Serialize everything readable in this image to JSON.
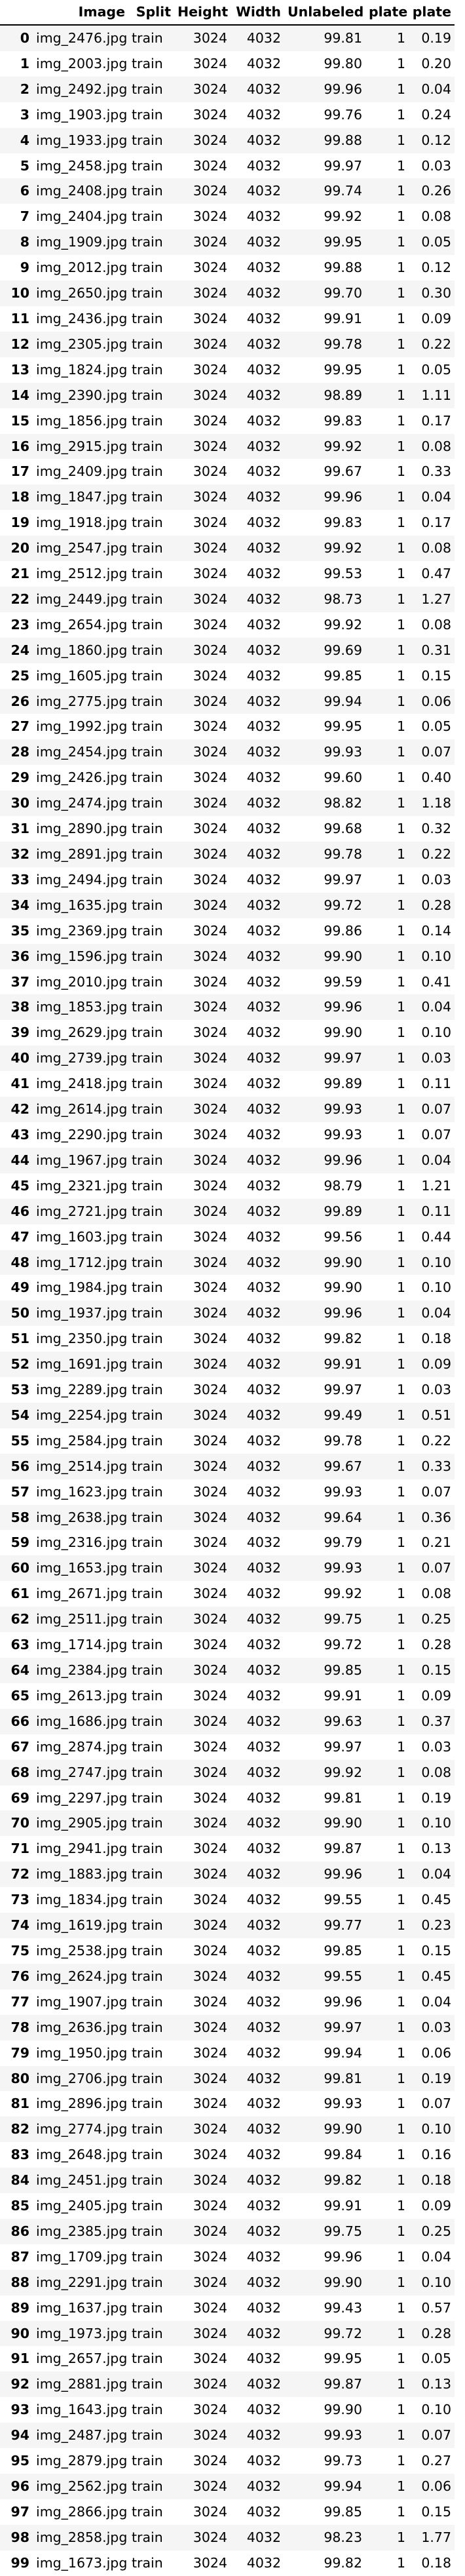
{
  "columns": [
    "",
    "Image",
    "Split",
    "Height",
    "Width",
    "Unlabeled",
    "plate",
    "plate"
  ],
  "rows": [
    [
      "0",
      "img_2476.jpg",
      "train",
      "3024",
      "4032",
      "99.81",
      "1",
      "0.19"
    ],
    [
      "1",
      "img_2003.jpg",
      "train",
      "3024",
      "4032",
      "99.80",
      "1",
      "0.20"
    ],
    [
      "2",
      "img_2492.jpg",
      "train",
      "3024",
      "4032",
      "99.96",
      "1",
      "0.04"
    ],
    [
      "3",
      "img_1903.jpg",
      "train",
      "3024",
      "4032",
      "99.76",
      "1",
      "0.24"
    ],
    [
      "4",
      "img_1933.jpg",
      "train",
      "3024",
      "4032",
      "99.88",
      "1",
      "0.12"
    ],
    [
      "5",
      "img_2458.jpg",
      "train",
      "3024",
      "4032",
      "99.97",
      "1",
      "0.03"
    ],
    [
      "6",
      "img_2408.jpg",
      "train",
      "3024",
      "4032",
      "99.74",
      "1",
      "0.26"
    ],
    [
      "7",
      "img_2404.jpg",
      "train",
      "3024",
      "4032",
      "99.92",
      "1",
      "0.08"
    ],
    [
      "8",
      "img_1909.jpg",
      "train",
      "3024",
      "4032",
      "99.95",
      "1",
      "0.05"
    ],
    [
      "9",
      "img_2012.jpg",
      "train",
      "3024",
      "4032",
      "99.88",
      "1",
      "0.12"
    ],
    [
      "10",
      "img_2650.jpg",
      "train",
      "3024",
      "4032",
      "99.70",
      "1",
      "0.30"
    ],
    [
      "11",
      "img_2436.jpg",
      "train",
      "3024",
      "4032",
      "99.91",
      "1",
      "0.09"
    ],
    [
      "12",
      "img_2305.jpg",
      "train",
      "3024",
      "4032",
      "99.78",
      "1",
      "0.22"
    ],
    [
      "13",
      "img_1824.jpg",
      "train",
      "3024",
      "4032",
      "99.95",
      "1",
      "0.05"
    ],
    [
      "14",
      "img_2390.jpg",
      "train",
      "3024",
      "4032",
      "98.89",
      "1",
      "1.11"
    ],
    [
      "15",
      "img_1856.jpg",
      "train",
      "3024",
      "4032",
      "99.83",
      "1",
      "0.17"
    ],
    [
      "16",
      "img_2915.jpg",
      "train",
      "3024",
      "4032",
      "99.92",
      "1",
      "0.08"
    ],
    [
      "17",
      "img_2409.jpg",
      "train",
      "3024",
      "4032",
      "99.67",
      "1",
      "0.33"
    ],
    [
      "18",
      "img_1847.jpg",
      "train",
      "3024",
      "4032",
      "99.96",
      "1",
      "0.04"
    ],
    [
      "19",
      "img_1918.jpg",
      "train",
      "3024",
      "4032",
      "99.83",
      "1",
      "0.17"
    ],
    [
      "20",
      "img_2547.jpg",
      "train",
      "3024",
      "4032",
      "99.92",
      "1",
      "0.08"
    ],
    [
      "21",
      "img_2512.jpg",
      "train",
      "3024",
      "4032",
      "99.53",
      "1",
      "0.47"
    ],
    [
      "22",
      "img_2449.jpg",
      "train",
      "3024",
      "4032",
      "98.73",
      "1",
      "1.27"
    ],
    [
      "23",
      "img_2654.jpg",
      "train",
      "3024",
      "4032",
      "99.92",
      "1",
      "0.08"
    ],
    [
      "24",
      "img_1860.jpg",
      "train",
      "3024",
      "4032",
      "99.69",
      "1",
      "0.31"
    ],
    [
      "25",
      "img_1605.jpg",
      "train",
      "3024",
      "4032",
      "99.85",
      "1",
      "0.15"
    ],
    [
      "26",
      "img_2775.jpg",
      "train",
      "3024",
      "4032",
      "99.94",
      "1",
      "0.06"
    ],
    [
      "27",
      "img_1992.jpg",
      "train",
      "3024",
      "4032",
      "99.95",
      "1",
      "0.05"
    ],
    [
      "28",
      "img_2454.jpg",
      "train",
      "3024",
      "4032",
      "99.93",
      "1",
      "0.07"
    ],
    [
      "29",
      "img_2426.jpg",
      "train",
      "3024",
      "4032",
      "99.60",
      "1",
      "0.40"
    ],
    [
      "30",
      "img_2474.jpg",
      "train",
      "3024",
      "4032",
      "98.82",
      "1",
      "1.18"
    ],
    [
      "31",
      "img_2890.jpg",
      "train",
      "3024",
      "4032",
      "99.68",
      "1",
      "0.32"
    ],
    [
      "32",
      "img_2891.jpg",
      "train",
      "3024",
      "4032",
      "99.78",
      "1",
      "0.22"
    ],
    [
      "33",
      "img_2494.jpg",
      "train",
      "3024",
      "4032",
      "99.97",
      "1",
      "0.03"
    ],
    [
      "34",
      "img_1635.jpg",
      "train",
      "3024",
      "4032",
      "99.72",
      "1",
      "0.28"
    ],
    [
      "35",
      "img_2369.jpg",
      "train",
      "3024",
      "4032",
      "99.86",
      "1",
      "0.14"
    ],
    [
      "36",
      "img_1596.jpg",
      "train",
      "3024",
      "4032",
      "99.90",
      "1",
      "0.10"
    ],
    [
      "37",
      "img_2010.jpg",
      "train",
      "3024",
      "4032",
      "99.59",
      "1",
      "0.41"
    ],
    [
      "38",
      "img_1853.jpg",
      "train",
      "3024",
      "4032",
      "99.96",
      "1",
      "0.04"
    ],
    [
      "39",
      "img_2629.jpg",
      "train",
      "3024",
      "4032",
      "99.90",
      "1",
      "0.10"
    ],
    [
      "40",
      "img_2739.jpg",
      "train",
      "3024",
      "4032",
      "99.97",
      "1",
      "0.03"
    ],
    [
      "41",
      "img_2418.jpg",
      "train",
      "3024",
      "4032",
      "99.89",
      "1",
      "0.11"
    ],
    [
      "42",
      "img_2614.jpg",
      "train",
      "3024",
      "4032",
      "99.93",
      "1",
      "0.07"
    ],
    [
      "43",
      "img_2290.jpg",
      "train",
      "3024",
      "4032",
      "99.93",
      "1",
      "0.07"
    ],
    [
      "44",
      "img_1967.jpg",
      "train",
      "3024",
      "4032",
      "99.96",
      "1",
      "0.04"
    ],
    [
      "45",
      "img_2321.jpg",
      "train",
      "3024",
      "4032",
      "98.79",
      "1",
      "1.21"
    ],
    [
      "46",
      "img_2721.jpg",
      "train",
      "3024",
      "4032",
      "99.89",
      "1",
      "0.11"
    ],
    [
      "47",
      "img_1603.jpg",
      "train",
      "3024",
      "4032",
      "99.56",
      "1",
      "0.44"
    ],
    [
      "48",
      "img_1712.jpg",
      "train",
      "3024",
      "4032",
      "99.90",
      "1",
      "0.10"
    ],
    [
      "49",
      "img_1984.jpg",
      "train",
      "3024",
      "4032",
      "99.90",
      "1",
      "0.10"
    ],
    [
      "50",
      "img_1937.jpg",
      "train",
      "3024",
      "4032",
      "99.96",
      "1",
      "0.04"
    ],
    [
      "51",
      "img_2350.jpg",
      "train",
      "3024",
      "4032",
      "99.82",
      "1",
      "0.18"
    ],
    [
      "52",
      "img_1691.jpg",
      "train",
      "3024",
      "4032",
      "99.91",
      "1",
      "0.09"
    ],
    [
      "53",
      "img_2289.jpg",
      "train",
      "3024",
      "4032",
      "99.97",
      "1",
      "0.03"
    ],
    [
      "54",
      "img_2254.jpg",
      "train",
      "3024",
      "4032",
      "99.49",
      "1",
      "0.51"
    ],
    [
      "55",
      "img_2584.jpg",
      "train",
      "3024",
      "4032",
      "99.78",
      "1",
      "0.22"
    ],
    [
      "56",
      "img_2514.jpg",
      "train",
      "3024",
      "4032",
      "99.67",
      "1",
      "0.33"
    ],
    [
      "57",
      "img_1623.jpg",
      "train",
      "3024",
      "4032",
      "99.93",
      "1",
      "0.07"
    ],
    [
      "58",
      "img_2638.jpg",
      "train",
      "3024",
      "4032",
      "99.64",
      "1",
      "0.36"
    ],
    [
      "59",
      "img_2316.jpg",
      "train",
      "3024",
      "4032",
      "99.79",
      "1",
      "0.21"
    ],
    [
      "60",
      "img_1653.jpg",
      "train",
      "3024",
      "4032",
      "99.93",
      "1",
      "0.07"
    ],
    [
      "61",
      "img_2671.jpg",
      "train",
      "3024",
      "4032",
      "99.92",
      "1",
      "0.08"
    ],
    [
      "62",
      "img_2511.jpg",
      "train",
      "3024",
      "4032",
      "99.75",
      "1",
      "0.25"
    ],
    [
      "63",
      "img_1714.jpg",
      "train",
      "3024",
      "4032",
      "99.72",
      "1",
      "0.28"
    ],
    [
      "64",
      "img_2384.jpg",
      "train",
      "3024",
      "4032",
      "99.85",
      "1",
      "0.15"
    ],
    [
      "65",
      "img_2613.jpg",
      "train",
      "3024",
      "4032",
      "99.91",
      "1",
      "0.09"
    ],
    [
      "66",
      "img_1686.jpg",
      "train",
      "3024",
      "4032",
      "99.63",
      "1",
      "0.37"
    ],
    [
      "67",
      "img_2874.jpg",
      "train",
      "3024",
      "4032",
      "99.97",
      "1",
      "0.03"
    ],
    [
      "68",
      "img_2747.jpg",
      "train",
      "3024",
      "4032",
      "99.92",
      "1",
      "0.08"
    ],
    [
      "69",
      "img_2297.jpg",
      "train",
      "3024",
      "4032",
      "99.81",
      "1",
      "0.19"
    ],
    [
      "70",
      "img_2905.jpg",
      "train",
      "3024",
      "4032",
      "99.90",
      "1",
      "0.10"
    ],
    [
      "71",
      "img_2941.jpg",
      "train",
      "3024",
      "4032",
      "99.87",
      "1",
      "0.13"
    ],
    [
      "72",
      "img_1883.jpg",
      "train",
      "3024",
      "4032",
      "99.96",
      "1",
      "0.04"
    ],
    [
      "73",
      "img_1834.jpg",
      "train",
      "3024",
      "4032",
      "99.55",
      "1",
      "0.45"
    ],
    [
      "74",
      "img_1619.jpg",
      "train",
      "3024",
      "4032",
      "99.77",
      "1",
      "0.23"
    ],
    [
      "75",
      "img_2538.jpg",
      "train",
      "3024",
      "4032",
      "99.85",
      "1",
      "0.15"
    ],
    [
      "76",
      "img_2624.jpg",
      "train",
      "3024",
      "4032",
      "99.55",
      "1",
      "0.45"
    ],
    [
      "77",
      "img_1907.jpg",
      "train",
      "3024",
      "4032",
      "99.96",
      "1",
      "0.04"
    ],
    [
      "78",
      "img_2636.jpg",
      "train",
      "3024",
      "4032",
      "99.97",
      "1",
      "0.03"
    ],
    [
      "79",
      "img_1950.jpg",
      "train",
      "3024",
      "4032",
      "99.94",
      "1",
      "0.06"
    ],
    [
      "80",
      "img_2706.jpg",
      "train",
      "3024",
      "4032",
      "99.81",
      "1",
      "0.19"
    ],
    [
      "81",
      "img_2896.jpg",
      "train",
      "3024",
      "4032",
      "99.93",
      "1",
      "0.07"
    ],
    [
      "82",
      "img_2774.jpg",
      "train",
      "3024",
      "4032",
      "99.90",
      "1",
      "0.10"
    ],
    [
      "83",
      "img_2648.jpg",
      "train",
      "3024",
      "4032",
      "99.84",
      "1",
      "0.16"
    ],
    [
      "84",
      "img_2451.jpg",
      "train",
      "3024",
      "4032",
      "99.82",
      "1",
      "0.18"
    ],
    [
      "85",
      "img_2405.jpg",
      "train",
      "3024",
      "4032",
      "99.91",
      "1",
      "0.09"
    ],
    [
      "86",
      "img_2385.jpg",
      "train",
      "3024",
      "4032",
      "99.75",
      "1",
      "0.25"
    ],
    [
      "87",
      "img_1709.jpg",
      "train",
      "3024",
      "4032",
      "99.96",
      "1",
      "0.04"
    ],
    [
      "88",
      "img_2291.jpg",
      "train",
      "3024",
      "4032",
      "99.90",
      "1",
      "0.10"
    ],
    [
      "89",
      "img_1637.jpg",
      "train",
      "3024",
      "4032",
      "99.43",
      "1",
      "0.57"
    ],
    [
      "90",
      "img_1973.jpg",
      "train",
      "3024",
      "4032",
      "99.72",
      "1",
      "0.28"
    ],
    [
      "91",
      "img_2657.jpg",
      "train",
      "3024",
      "4032",
      "99.95",
      "1",
      "0.05"
    ],
    [
      "92",
      "img_2881.jpg",
      "train",
      "3024",
      "4032",
      "99.87",
      "1",
      "0.13"
    ],
    [
      "93",
      "img_1643.jpg",
      "train",
      "3024",
      "4032",
      "99.90",
      "1",
      "0.10"
    ],
    [
      "94",
      "img_2487.jpg",
      "train",
      "3024",
      "4032",
      "99.93",
      "1",
      "0.07"
    ],
    [
      "95",
      "img_2879.jpg",
      "train",
      "3024",
      "4032",
      "99.73",
      "1",
      "0.27"
    ],
    [
      "96",
      "img_2562.jpg",
      "train",
      "3024",
      "4032",
      "99.94",
      "1",
      "0.06"
    ],
    [
      "97",
      "img_2866.jpg",
      "train",
      "3024",
      "4032",
      "99.85",
      "1",
      "0.15"
    ],
    [
      "98",
      "img_2858.jpg",
      "train",
      "3024",
      "4032",
      "98.23",
      "1",
      "1.77"
    ],
    [
      "99",
      "img_1673.jpg",
      "train",
      "3024",
      "4032",
      "99.82",
      "1",
      "0.18"
    ]
  ]
}
